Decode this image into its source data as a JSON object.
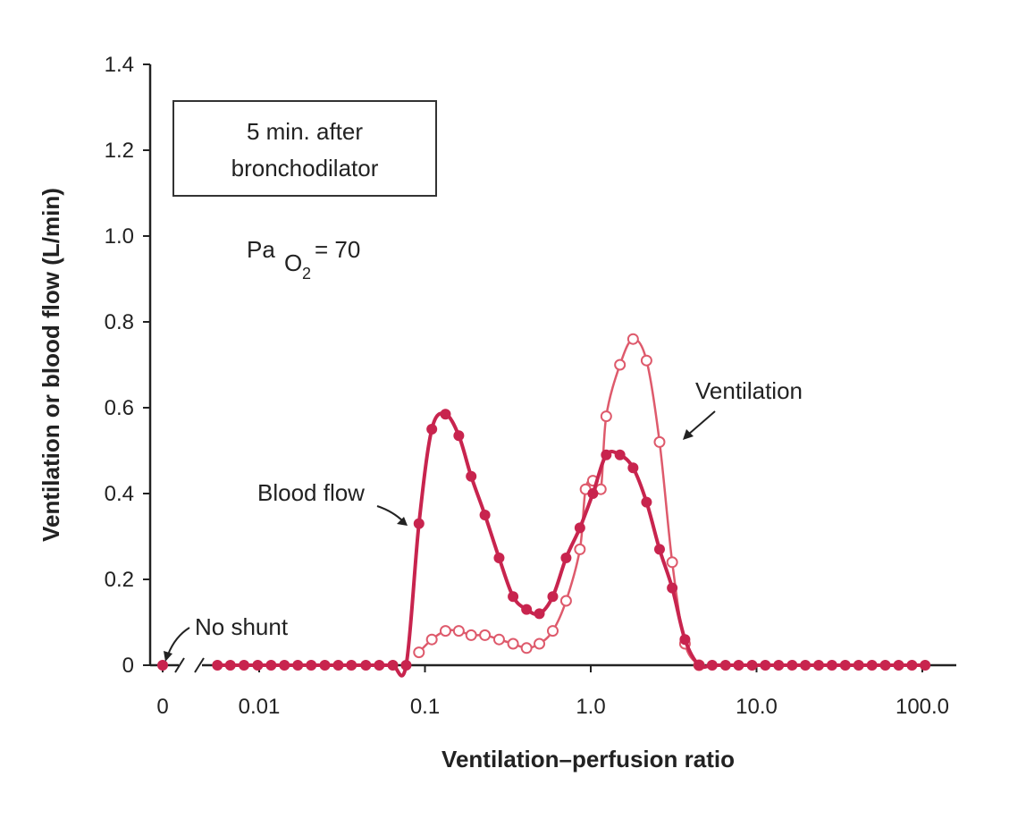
{
  "chart_data": {
    "type": "line",
    "xlabel": "Ventilation–perfusion ratio",
    "ylabel": "Ventilation or blood flow (L/min)",
    "xscale": "log",
    "xlim": [
      0.005,
      130
    ],
    "ylim": [
      0,
      1.4
    ],
    "x_ticks": [
      "0",
      "0.01",
      "0.1",
      "1.0",
      "10.0",
      "100.0"
    ],
    "y_ticks": [
      "0",
      "0.2",
      "0.4",
      "0.6",
      "0.8",
      "1.0",
      "1.2",
      "1.4"
    ],
    "axis_break": true,
    "grid": false,
    "legend": "none",
    "box_text": [
      "5 min. after",
      "bronchodilator"
    ],
    "pao2": {
      "prefix": "Pa",
      "sub": "O",
      "sub2": "2",
      "value": "= 70"
    },
    "labels": {
      "blood_flow": "Blood flow",
      "ventilation": "Ventilation",
      "no_shunt": "No shunt"
    },
    "colors": {
      "blood_flow": "#c8244e",
      "ventilation": "#de5a6c",
      "axis": "#222222"
    },
    "shunt_point": {
      "x": "0",
      "y": 0
    },
    "series": [
      {
        "name": "Blood flow",
        "marker": "filled-circle",
        "points": [
          [
            0.0056,
            0
          ],
          [
            0.0067,
            0
          ],
          [
            0.0081,
            0
          ],
          [
            0.0098,
            0
          ],
          [
            0.0118,
            0
          ],
          [
            0.0142,
            0
          ],
          [
            0.0171,
            0
          ],
          [
            0.0206,
            0
          ],
          [
            0.0249,
            0
          ],
          [
            0.03,
            0
          ],
          [
            0.036,
            0
          ],
          [
            0.044,
            0
          ],
          [
            0.053,
            0
          ],
          [
            0.064,
            0
          ],
          [
            0.077,
            0
          ],
          [
            0.092,
            0.33
          ],
          [
            0.11,
            0.55
          ],
          [
            0.133,
            0.585
          ],
          [
            0.16,
            0.535
          ],
          [
            0.19,
            0.44
          ],
          [
            0.23,
            0.35
          ],
          [
            0.28,
            0.25
          ],
          [
            0.34,
            0.16
          ],
          [
            0.41,
            0.13
          ],
          [
            0.49,
            0.12
          ],
          [
            0.59,
            0.16
          ],
          [
            0.71,
            0.25
          ],
          [
            0.86,
            0.32
          ],
          [
            1.03,
            0.4
          ],
          [
            1.24,
            0.49
          ],
          [
            1.5,
            0.49
          ],
          [
            1.8,
            0.46
          ],
          [
            2.17,
            0.38
          ],
          [
            2.6,
            0.27
          ],
          [
            3.1,
            0.18
          ],
          [
            3.7,
            0.06
          ],
          [
            4.5,
            0
          ],
          [
            5.4,
            0
          ],
          [
            6.5,
            0
          ],
          [
            7.8,
            0
          ],
          [
            9.4,
            0
          ],
          [
            11.3,
            0
          ],
          [
            13.6,
            0
          ],
          [
            16.4,
            0
          ],
          [
            19.7,
            0
          ],
          [
            23.7,
            0
          ],
          [
            28.5,
            0
          ],
          [
            34.3,
            0
          ],
          [
            41.3,
            0
          ],
          [
            49.7,
            0
          ],
          [
            59.8,
            0
          ],
          [
            72,
            0
          ],
          [
            86.6,
            0
          ],
          [
            104,
            0
          ]
        ]
      },
      {
        "name": "Ventilation",
        "marker": "open-circle",
        "points": [
          [
            0.092,
            0.03
          ],
          [
            0.11,
            0.06
          ],
          [
            0.133,
            0.08
          ],
          [
            0.16,
            0.08
          ],
          [
            0.19,
            0.07
          ],
          [
            0.23,
            0.07
          ],
          [
            0.28,
            0.06
          ],
          [
            0.34,
            0.05
          ],
          [
            0.41,
            0.04
          ],
          [
            0.49,
            0.05
          ],
          [
            0.59,
            0.08
          ],
          [
            0.71,
            0.15
          ],
          [
            0.86,
            0.27
          ],
          [
            0.93,
            0.41
          ],
          [
            1.03,
            0.43
          ],
          [
            1.15,
            0.41
          ],
          [
            1.24,
            0.58
          ],
          [
            1.5,
            0.7
          ],
          [
            1.8,
            0.76
          ],
          [
            2.17,
            0.71
          ],
          [
            2.6,
            0.52
          ],
          [
            3.1,
            0.24
          ],
          [
            3.7,
            0.05
          ],
          [
            4.5,
            0
          ]
        ]
      }
    ]
  }
}
